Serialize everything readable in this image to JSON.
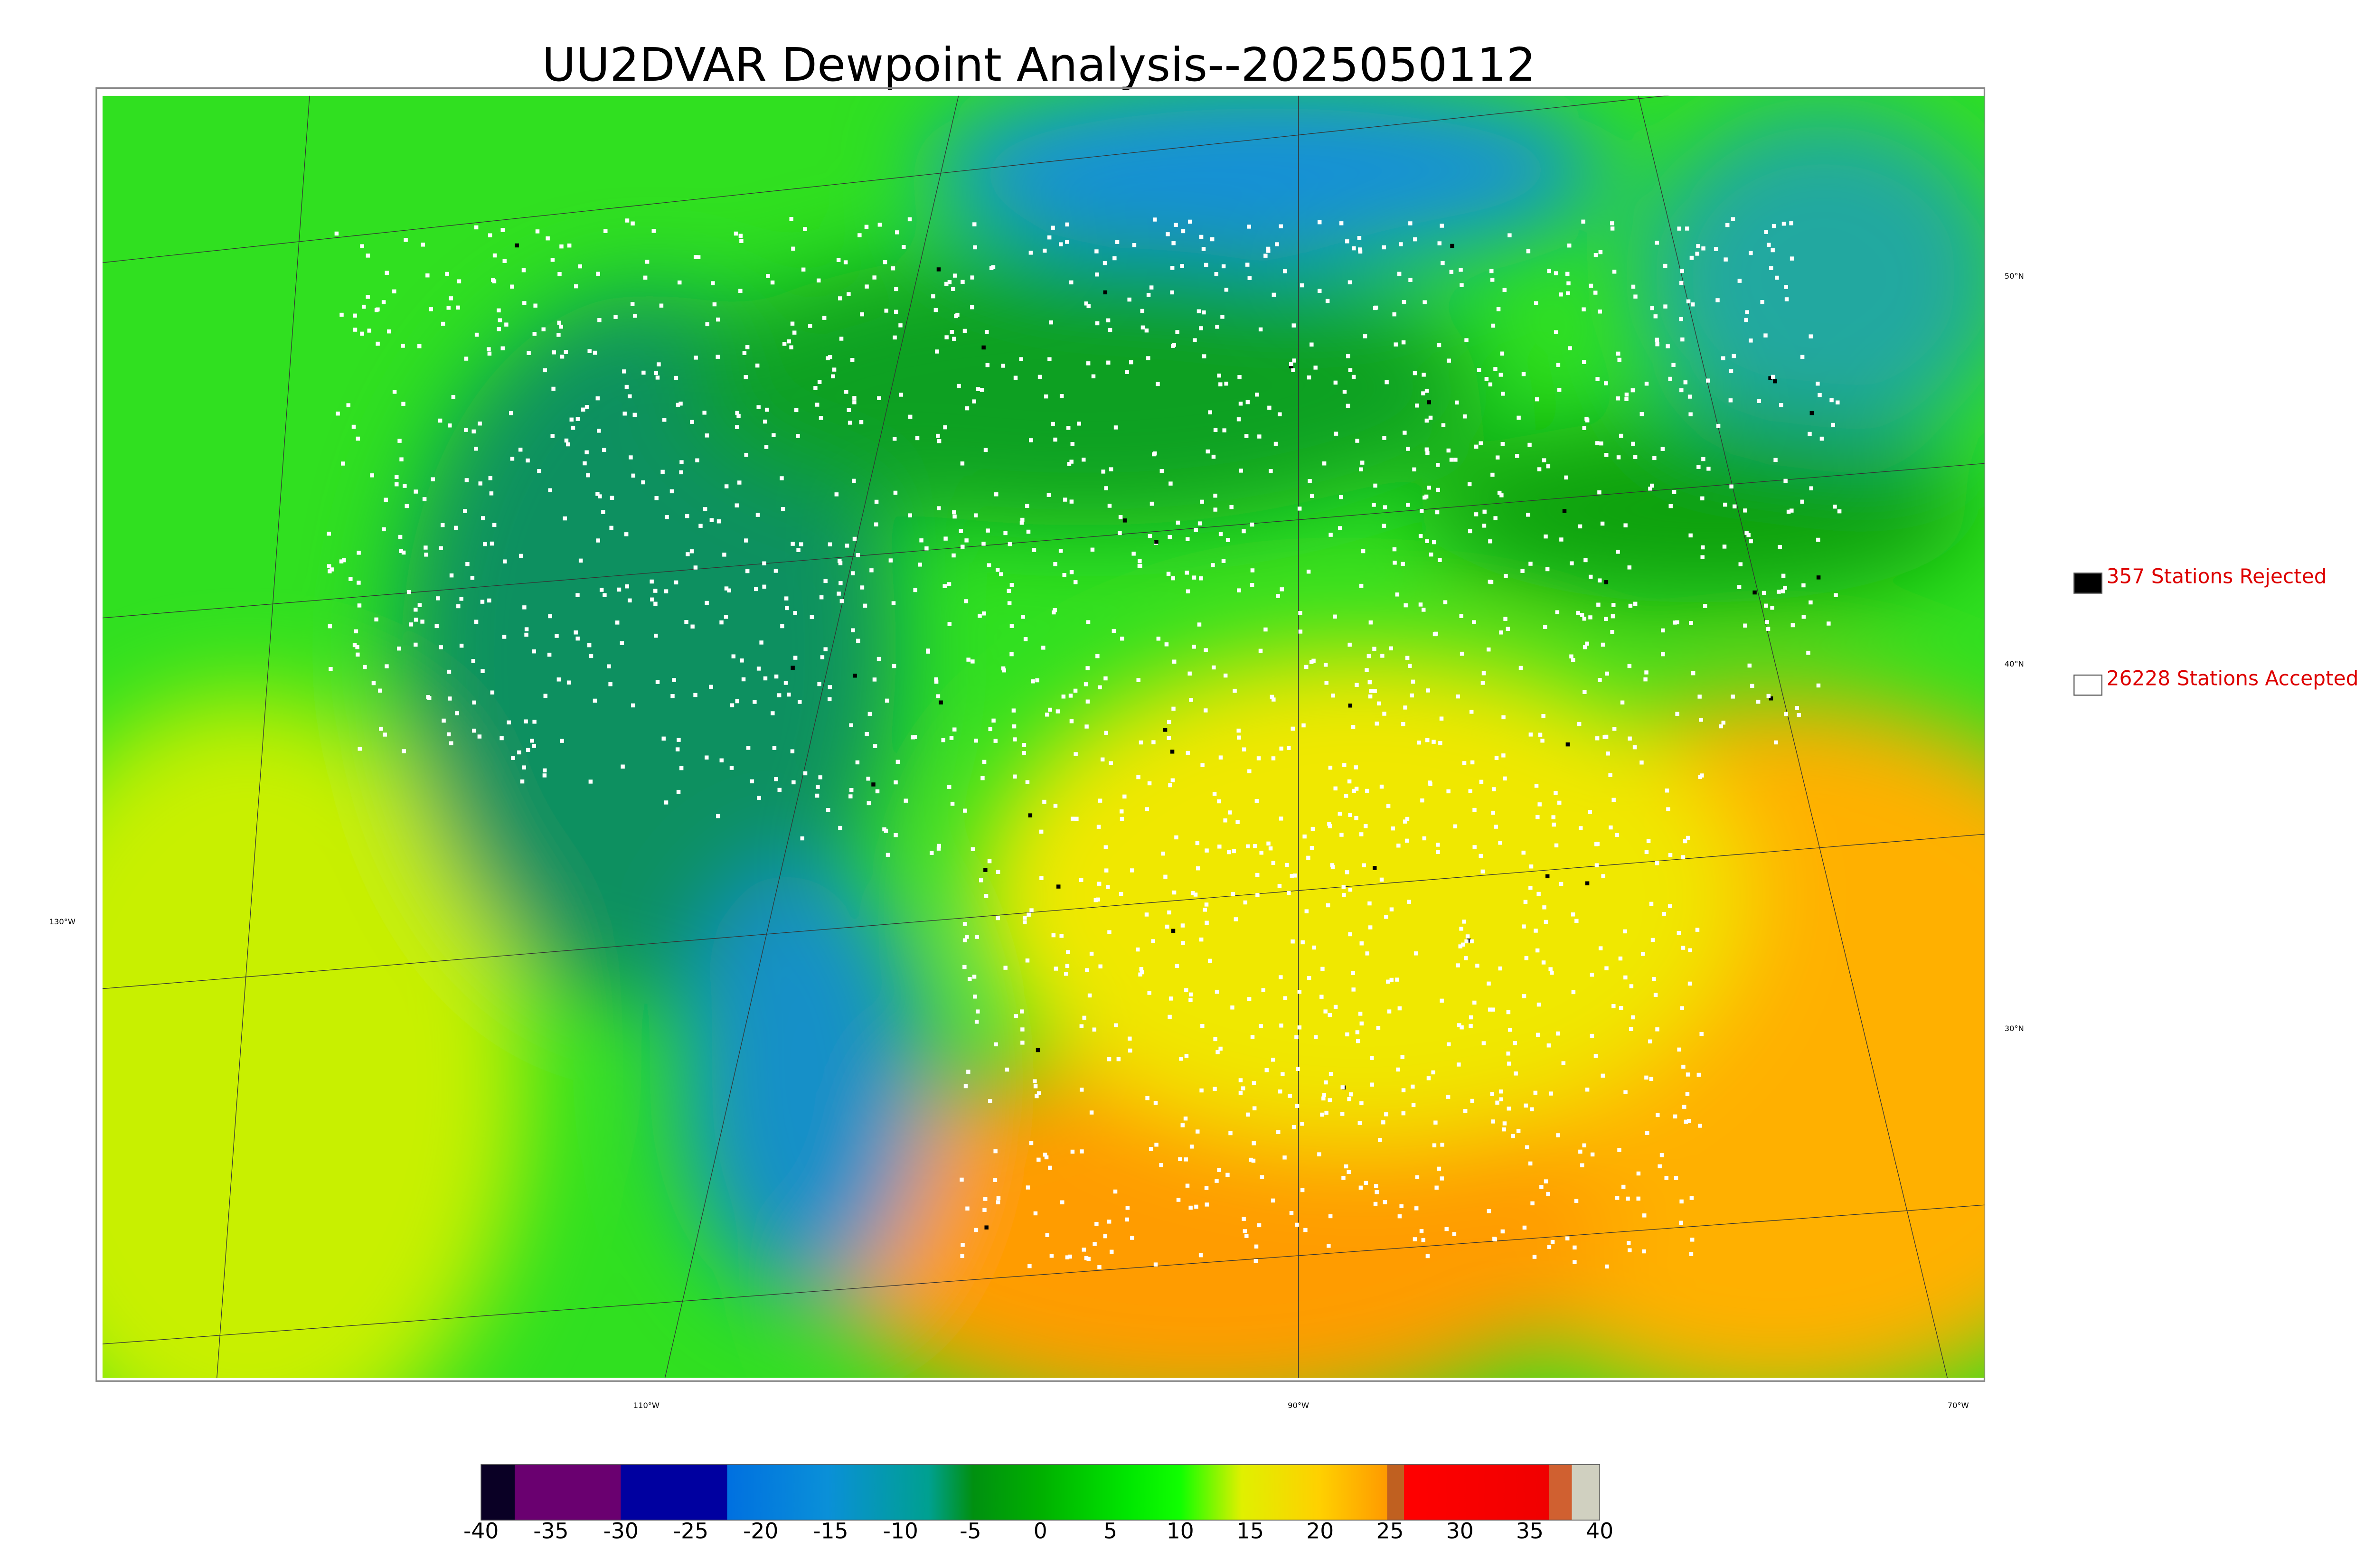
{
  "title": "UU2DVAR Dewpoint Analysis--2025050112",
  "legend": [
    {
      "label": "357 Stations Rejected",
      "color": "#000000"
    },
    {
      "label": "26228 Stations Accepted",
      "color": "#ffffff"
    }
  ],
  "latitude_labels": [
    "50°N",
    "40°N",
    "30°N"
  ],
  "longitude_labels": [
    "130°W",
    "110°W",
    "90°W",
    "70°W"
  ],
  "colorbar": {
    "ticks": [
      -40,
      -35,
      -30,
      -25,
      -20,
      -15,
      -10,
      -5,
      0,
      5,
      10,
      15,
      20,
      25,
      30,
      35,
      40
    ]
  }
}
